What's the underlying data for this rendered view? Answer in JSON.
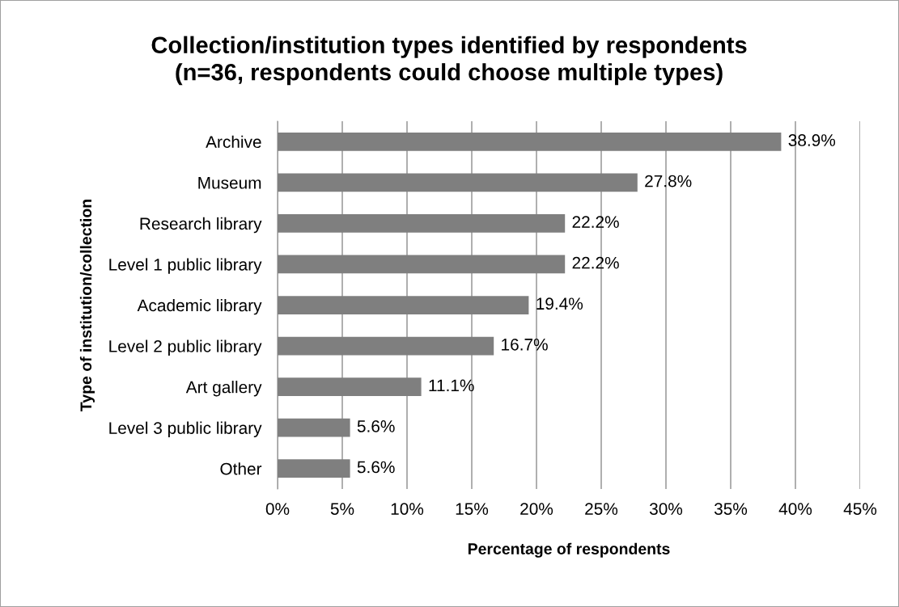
{
  "chart_data": {
    "type": "bar",
    "orientation": "horizontal",
    "title": "Collection/institution types identified by respondents\n(n=36, respondents could choose multiple types)",
    "xlabel": "Percentage of respondents",
    "ylabel": "Type of institution/collection",
    "categories": [
      "Archive",
      "Museum",
      "Research library",
      "Level 1 public library",
      "Academic library",
      "Level 2 public library",
      "Art gallery",
      "Level 3 public library",
      "Other"
    ],
    "values": [
      38.9,
      27.8,
      22.2,
      22.2,
      19.4,
      16.7,
      11.1,
      5.6,
      5.6
    ],
    "value_labels": [
      "38.9%",
      "27.8%",
      "22.2%",
      "22.2%",
      "19.4%",
      "16.7%",
      "11.1%",
      "5.6%",
      "5.6%"
    ],
    "color": "#7f7f7f",
    "xlim": [
      0,
      45
    ],
    "xticks": [
      {
        "value": 0,
        "label": "0%"
      },
      {
        "value": 5,
        "label": "5%"
      },
      {
        "value": 10,
        "label": "10%"
      },
      {
        "value": 15,
        "label": "15%"
      },
      {
        "value": 20,
        "label": "20%"
      },
      {
        "value": 25,
        "label": "25%"
      },
      {
        "value": 30,
        "label": "30%"
      },
      {
        "value": 35,
        "label": "35%"
      },
      {
        "value": 40,
        "label": "40%"
      },
      {
        "value": 45,
        "label": "45%"
      }
    ],
    "grid": "x"
  }
}
